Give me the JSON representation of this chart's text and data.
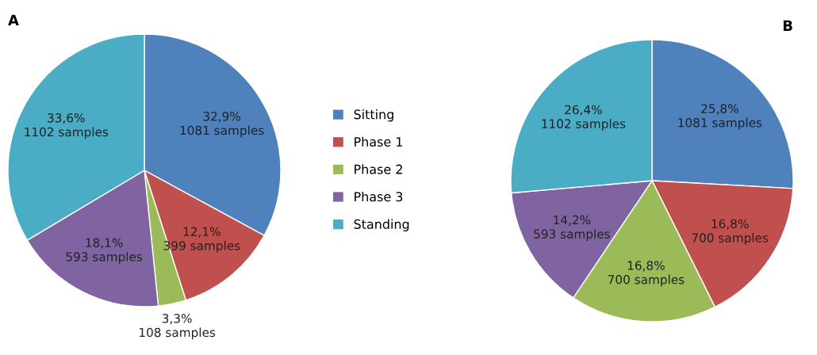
{
  "chart_data": [
    {
      "type": "pie",
      "title": "A",
      "categories": [
        "Sitting",
        "Phase 1",
        "Phase 2",
        "Phase 3",
        "Standing"
      ],
      "values": [
        1081,
        399,
        108,
        593,
        1102
      ],
      "colors": [
        "#4f81bd",
        "#c0504d",
        "#9bbb59",
        "#8064a2",
        "#4bacc6"
      ],
      "value_labels": [
        "32,9%\n1081 samples",
        "12,1%\n399 samples",
        "3,3%\n108 samples",
        "18,1%\n593 samples",
        "33,6%\n1102 samples"
      ],
      "legend": "right"
    },
    {
      "type": "pie",
      "title": "B",
      "categories": [
        null,
        null,
        null,
        null,
        null
      ],
      "values": [
        1081,
        700,
        700,
        593,
        1102
      ],
      "colors": [
        "#4f81bd",
        "#c0504d",
        "#9bbb59",
        "#8064a2",
        "#4bacc6"
      ],
      "value_labels": [
        "25,8%\n1081 samples",
        "16,8%\n700 samples",
        "16,8%\n700 samples",
        "14,2%\n593 samples",
        "26,4%\n1102 samples"
      ]
    }
  ]
}
